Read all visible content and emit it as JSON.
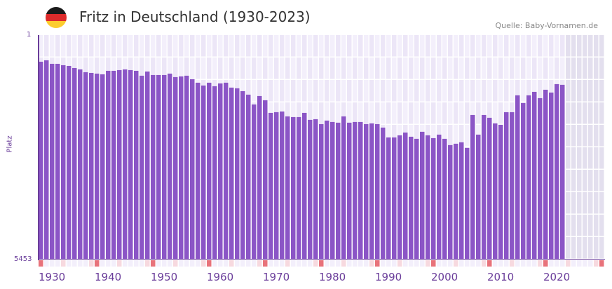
{
  "header": {
    "title": "Fritz in Deutschland (1930-2023)",
    "flag": "germany-flag-icon",
    "source": "Quelle: Baby-Vornamen.de"
  },
  "colors": {
    "bar": "#8b55c6",
    "grid_light": "#f3effb",
    "grid_dark": "#ece6f7",
    "future": "#e3dfee",
    "decade_marker": "#e8727a",
    "half_decade_marker": "#f7d9df",
    "axis": "#6a3d9a"
  },
  "chart_data": {
    "type": "bar",
    "title": "Fritz in Deutschland (1930-2023)",
    "xlabel": "",
    "ylabel": "Platz",
    "y_inverted": true,
    "ylim": [
      1,
      5453
    ],
    "y_tick_labels": [
      "1",
      "5453"
    ],
    "x_tick_labels": [
      "1930",
      "1940",
      "1950",
      "1960",
      "1970",
      "1980",
      "1990",
      "2000",
      "2010",
      "2020"
    ],
    "x_range": [
      1930,
      2030
    ],
    "grid": true,
    "categories": [
      1930,
      1931,
      1932,
      1933,
      1934,
      1935,
      1936,
      1937,
      1938,
      1939,
      1940,
      1941,
      1942,
      1943,
      1944,
      1945,
      1946,
      1947,
      1948,
      1949,
      1950,
      1951,
      1952,
      1953,
      1954,
      1955,
      1956,
      1957,
      1958,
      1959,
      1960,
      1961,
      1962,
      1963,
      1964,
      1965,
      1966,
      1967,
      1968,
      1969,
      1970,
      1971,
      1972,
      1973,
      1974,
      1975,
      1976,
      1977,
      1978,
      1979,
      1980,
      1981,
      1982,
      1983,
      1984,
      1985,
      1986,
      1987,
      1988,
      1989,
      1990,
      1991,
      1992,
      1993,
      1994,
      1995,
      1996,
      1997,
      1998,
      1999,
      2000,
      2001,
      2002,
      2003,
      2004,
      2005,
      2006,
      2007,
      2008,
      2009,
      2010,
      2011,
      2012,
      2013,
      2014,
      2015,
      2016,
      2017,
      2018,
      2019,
      2020,
      2021,
      2022,
      2023
    ],
    "values": [
      648,
      614,
      699,
      699,
      733,
      750,
      801,
      835,
      903,
      920,
      937,
      954,
      869,
      869,
      852,
      835,
      852,
      869,
      988,
      886,
      971,
      971,
      971,
      937,
      1022,
      1005,
      988,
      1073,
      1158,
      1226,
      1158,
      1243,
      1175,
      1158,
      1277,
      1294,
      1363,
      1448,
      1686,
      1482,
      1584,
      1891,
      1874,
      1857,
      1976,
      1993,
      1993,
      1891,
      2061,
      2044,
      2163,
      2078,
      2112,
      2129,
      1976,
      2129,
      2112,
      2112,
      2163,
      2146,
      2163,
      2248,
      2487,
      2487,
      2436,
      2368,
      2470,
      2521,
      2350,
      2436,
      2504,
      2419,
      2521,
      2674,
      2640,
      2606,
      2742,
      1942,
      2419,
      1942,
      2010,
      2146,
      2180,
      1874,
      1874,
      1465,
      1652,
      1465,
      1380,
      1533,
      1329,
      1397,
      1192,
      1209
    ]
  }
}
